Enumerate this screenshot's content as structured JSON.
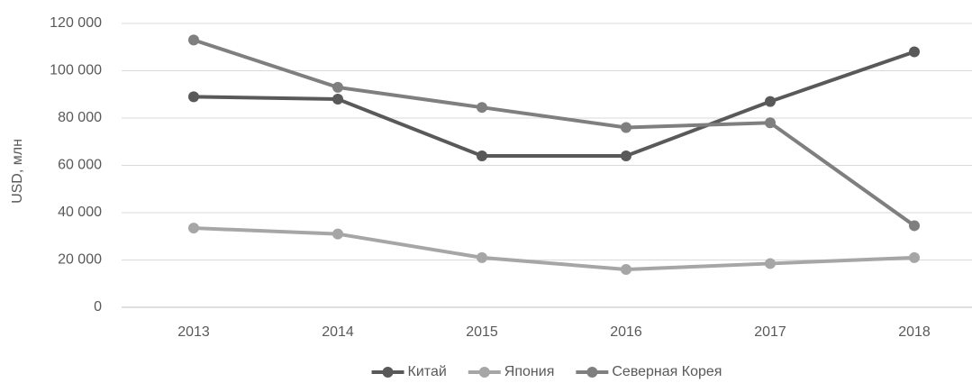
{
  "chart_data": {
    "type": "line",
    "y_label": "USD, млн",
    "categories": [
      "2013",
      "2014",
      "2015",
      "2016",
      "2017",
      "2018"
    ],
    "series": [
      {
        "name": "Китай",
        "color": "#595959",
        "values": [
          89000,
          88000,
          64000,
          64000,
          87000,
          108000
        ]
      },
      {
        "name": "Япония",
        "color": "#a6a6a6",
        "values": [
          33500,
          31000,
          21000,
          16000,
          18500,
          21000
        ]
      },
      {
        "name": "Северная Корея",
        "color": "#7f7f7f",
        "values": [
          113000,
          93000,
          84500,
          76000,
          78000,
          34500
        ]
      }
    ],
    "ylim": [
      0,
      120000
    ],
    "yticks": [
      0,
      {
        "value": 20000,
        "label": "20 000"
      },
      {
        "value": 40000,
        "label": "40 000"
      },
      {
        "value": 60000,
        "label": "60 000"
      },
      {
        "value": 80000,
        "label": "80 000"
      },
      {
        "value": 100000,
        "label": "100 000"
      },
      {
        "value": 120000,
        "label": "120 000"
      }
    ],
    "grid": true,
    "legend": "bottom"
  }
}
